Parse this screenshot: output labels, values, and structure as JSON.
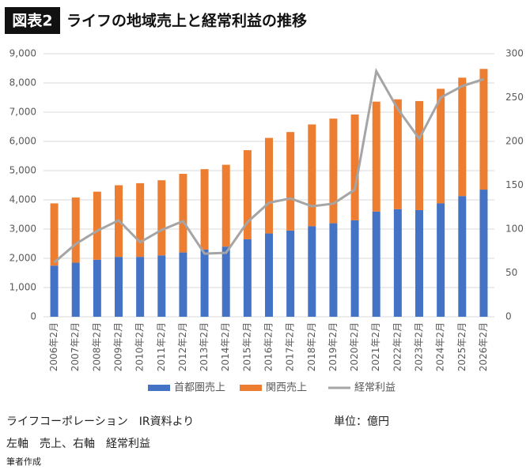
{
  "chart_data": {
    "type": "bar",
    "stacked": true,
    "figure_label": "図表2",
    "title": "ライフの地域売上と経常利益の推移",
    "categories": [
      "2006年2月",
      "2007年2月",
      "2008年2月",
      "2009年2月",
      "2010年2月",
      "2011年2月",
      "2012年2月",
      "2013年2月",
      "2014年2月",
      "2015年2月",
      "2016年2月",
      "2017年2月",
      "2018年2月",
      "2019年2月",
      "2020年2月",
      "2021年2月",
      "2022年2月",
      "2023年2月",
      "2024年2月",
      "2025年2月",
      "2026年2月"
    ],
    "series": [
      {
        "name": "首都圏売上",
        "type": "bar",
        "color": "#4472c4",
        "values": [
          1750,
          1850,
          1950,
          2050,
          2050,
          2100,
          2200,
          2300,
          2400,
          2650,
          2850,
          2950,
          3100,
          3200,
          3300,
          3600,
          3680,
          3650,
          3880,
          4130,
          4350
        ]
      },
      {
        "name": "関西売上",
        "type": "bar",
        "color": "#ed7d31",
        "values": [
          2130,
          2230,
          2330,
          2450,
          2520,
          2570,
          2690,
          2750,
          2800,
          3050,
          3270,
          3370,
          3480,
          3580,
          3620,
          3760,
          3760,
          3730,
          3920,
          4050,
          4130
        ]
      },
      {
        "name": "経常利益",
        "type": "line",
        "axis": "y2",
        "color": "#a5a5a5",
        "values": [
          62,
          83,
          98,
          110,
          85,
          99,
          109,
          72,
          73,
          108,
          130,
          135,
          126,
          129,
          145,
          280,
          237,
          203,
          250,
          263,
          271
        ]
      }
    ],
    "ylim": [
      0,
      9000
    ],
    "yticks": [
      0,
      {
        "value": 1000,
        "label": "1,000"
      },
      {
        "value": 2000,
        "label": "2,000"
      },
      {
        "value": 3000,
        "label": "3,000"
      },
      {
        "value": 4000,
        "label": "4,000"
      },
      {
        "value": 5000,
        "label": "5,000"
      },
      {
        "value": 6000,
        "label": "6,000"
      },
      {
        "value": 7000,
        "label": "7,000"
      },
      {
        "value": 8000,
        "label": "8,000"
      },
      {
        "value": 9000,
        "label": "9,000"
      }
    ],
    "y2lim": [
      0,
      300
    ],
    "y2ticks": [
      0,
      50,
      100,
      150,
      200,
      250,
      300
    ],
    "grid": true,
    "legend": "bottom",
    "notes": [
      "ライフコーポレーション　IR資料より",
      "単位：億円",
      "左軸　売上、右軸　経常利益",
      "筆者作成"
    ]
  }
}
